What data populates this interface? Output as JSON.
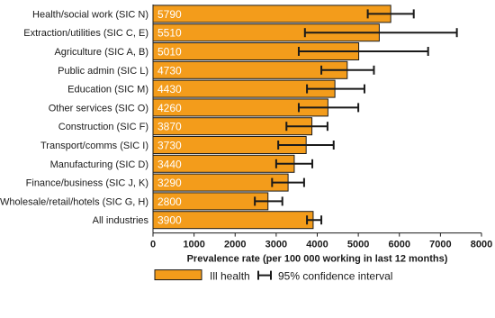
{
  "chart_data": {
    "type": "bar",
    "orientation": "horizontal",
    "categories": [
      "Health/social work (SIC N)",
      "Extraction/utilities (SIC C, E)",
      "Agriculture (SIC A, B)",
      "Public admin (SIC L)",
      "Education (SIC M)",
      "Other services (SIC O)",
      "Construction (SIC F)",
      "Transport/comms (SIC I)",
      "Manufacturing (SIC D)",
      "Finance/business (SIC J, K)",
      "Wholesale/retail/hotels (SIC G, H)",
      "All industries"
    ],
    "values": [
      5790,
      5510,
      5010,
      4730,
      4430,
      4260,
      3870,
      3730,
      3440,
      3290,
      2800,
      3900
    ],
    "value_labels": [
      "5790",
      "5510",
      "5010",
      "4730",
      "4430",
      "4260",
      "3870",
      "3730",
      "3440",
      "3290",
      "2800",
      "3900"
    ],
    "ci_low": [
      5230,
      3700,
      3550,
      4100,
      3750,
      3550,
      3250,
      3050,
      3000,
      2900,
      2480,
      3750
    ],
    "ci_high": [
      6350,
      7400,
      6700,
      5380,
      5150,
      5000,
      4250,
      4400,
      3880,
      3680,
      3150,
      4100
    ],
    "xlabel": "Prevalence rate (per 100 000 working in last 12 months)",
    "xlim": [
      0,
      8000
    ],
    "xticks": [
      0,
      1000,
      2000,
      3000,
      4000,
      5000,
      6000,
      7000,
      8000
    ],
    "xtick_labels": [
      "0",
      "1000",
      "2000",
      "3000",
      "4000",
      "5000",
      "6000",
      "7000",
      "8000"
    ],
    "legend": {
      "placement": "bottom-center",
      "bar_label": "Ill health",
      "ci_label": "95% confidence interval"
    },
    "colors": {
      "bar_fill": "#F39C1B",
      "bar_stroke": "#1a1a1a",
      "error_bar": "#1a1a1a"
    },
    "grid": false
  }
}
